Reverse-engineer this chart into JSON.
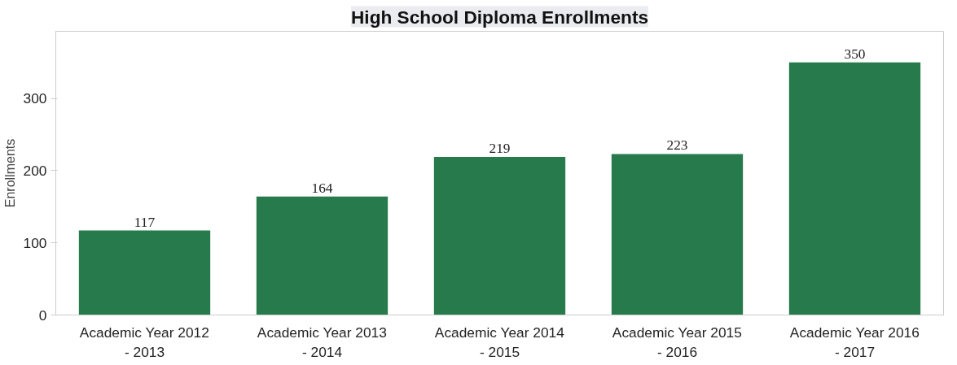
{
  "chart_data": {
    "type": "bar",
    "title": "High School Diploma Enrollments",
    "ylabel": "Enrollments",
    "categories": [
      "Academic Year 2012\n- 2013",
      "Academic Year 2013\n- 2014",
      "Academic Year 2014\n- 2015",
      "Academic Year 2015\n- 2016",
      "Academic Year 2016\n- 2017"
    ],
    "values": [
      117,
      164,
      219,
      223,
      350
    ],
    "color": "#277a4b",
    "ylim": [
      0,
      393
    ],
    "yticks": [
      0,
      100,
      200,
      300
    ],
    "grid": false,
    "data_labels": true
  }
}
